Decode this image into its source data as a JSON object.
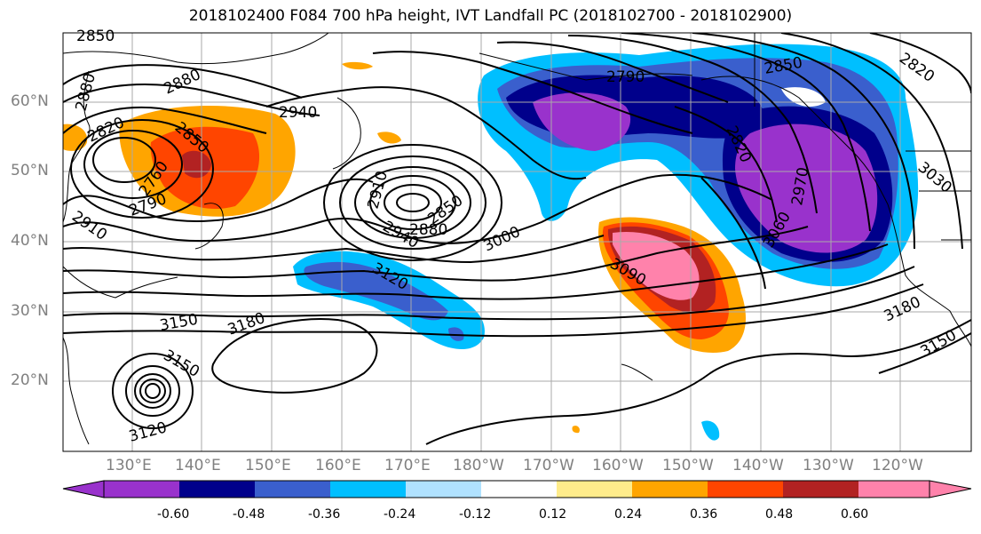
{
  "title": "2018102400 F084 700 hPa height, IVT Landfall PC (2018102700 - 2018102900)",
  "lat_labels": [
    "60°N",
    "50°N",
    "40°N",
    "30°N",
    "20°N"
  ],
  "lon_labels": [
    "130°E",
    "140°E",
    "150°E",
    "160°E",
    "170°E",
    "180°W",
    "170°W",
    "160°W",
    "150°W",
    "140°W",
    "130°W",
    "120°W"
  ],
  "colorbar": {
    "tick_labels": [
      "-0.60",
      "-0.48",
      "-0.36",
      "-0.24",
      "-0.12",
      "0.12",
      "0.24",
      "0.36",
      "0.48",
      "0.60"
    ],
    "colors": [
      "#9932cc",
      "#00008b",
      "#3a5fcd",
      "#00bfff",
      "#b0e2ff",
      "#ffffff",
      "#ffec8b",
      "#ffa500",
      "#ff4500",
      "#b22222",
      "#ff82ab"
    ]
  },
  "contour_labels": [
    {
      "text": "2850",
      "name": "label-2850-nw"
    },
    {
      "text": "2880",
      "name": "label-2880-w"
    },
    {
      "text": "2880",
      "name": "label-2880"
    },
    {
      "text": "2820",
      "name": "label-2820-w"
    },
    {
      "text": "2850",
      "name": "label-2850-japan"
    },
    {
      "text": "2760",
      "name": "label-2760"
    },
    {
      "text": "2790",
      "name": "label-2790-w"
    },
    {
      "text": "2910",
      "name": "label-2910-w"
    },
    {
      "text": "2940",
      "name": "label-2940-n"
    },
    {
      "text": "2910",
      "name": "label-2910-c"
    },
    {
      "text": "2850",
      "name": "label-2850-low"
    },
    {
      "text": "2880",
      "name": "label-2880-low"
    },
    {
      "text": "2940",
      "name": "label-2940-c"
    },
    {
      "text": "3000",
      "name": "label-3000"
    },
    {
      "text": "3120",
      "name": "label-3120-c"
    },
    {
      "text": "3150",
      "name": "label-3150-w"
    },
    {
      "text": "3180",
      "name": "label-3180-w"
    },
    {
      "text": "3150",
      "name": "label-3150-sw"
    },
    {
      "text": "3120",
      "name": "label-3120-sw"
    },
    {
      "text": "2790",
      "name": "label-2790-gulf"
    },
    {
      "text": "2850",
      "name": "label-2850-ak"
    },
    {
      "text": "2820",
      "name": "label-2820-ne"
    },
    {
      "text": "2820",
      "name": "label-2820-c"
    },
    {
      "text": "2970",
      "name": "label-2970"
    },
    {
      "text": "3060",
      "name": "label-3060"
    },
    {
      "text": "3030",
      "name": "label-3030"
    },
    {
      "text": "3090",
      "name": "label-3090"
    },
    {
      "text": "3180",
      "name": "label-3180-e"
    },
    {
      "text": "3150",
      "name": "label-3150-e"
    }
  ]
}
